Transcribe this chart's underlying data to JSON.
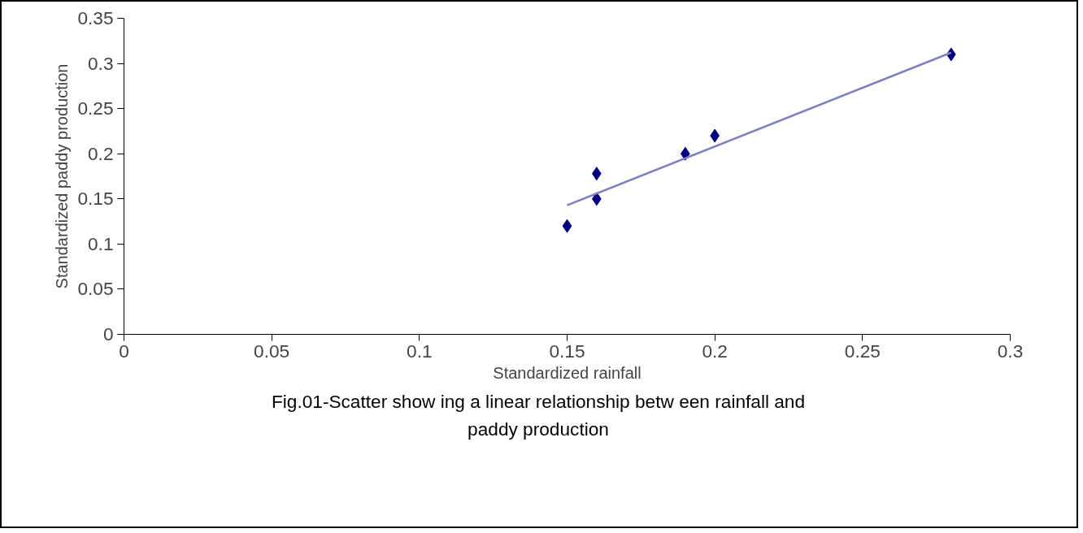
{
  "chart_data": {
    "type": "scatter",
    "xlabel": "Standardized rainfall",
    "ylabel": "Standardized paddy production",
    "annotations": [
      "Fig.01-Scatter show ing a linear relationship betw een rainfall and paddy production"
    ],
    "xlim": [
      0,
      0.3
    ],
    "xticks": [
      0,
      0.05,
      0.1,
      0.15,
      0.2,
      0.25,
      0.3
    ],
    "ylim": [
      0,
      0.35
    ],
    "yticks": [
      0,
      0.05,
      0.1,
      0.15,
      0.2,
      0.25,
      0.3,
      0.35
    ],
    "marker": "diamond",
    "series": [
      {
        "color": "#000080",
        "x": [
          0.15,
          0.16,
          0.16,
          0.19,
          0.2,
          0.28
        ],
        "values": [
          0.12,
          0.178,
          0.15,
          0.2,
          0.22,
          0.31
        ]
      },
      {
        "type": "line",
        "color": "#7f7fbf",
        "x": [
          0.15,
          0.28
        ],
        "values": [
          0.143,
          0.312
        ],
        "line_style": "solid",
        "marker": "none"
      }
    ]
  }
}
